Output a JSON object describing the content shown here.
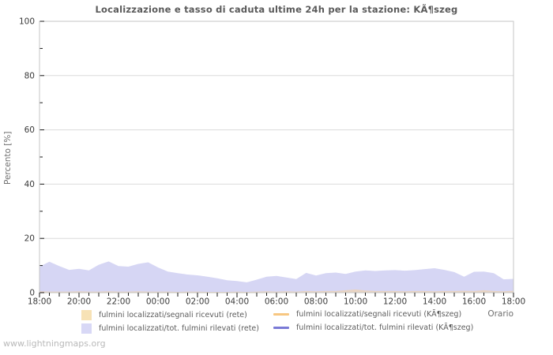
{
  "page": {
    "watermark": "www.lightningmaps.org",
    "background": "#ffffff"
  },
  "chart": {
    "title": "Localizzazione e tasso di caduta ultime 24h per la stazione: KÃ¶szeg",
    "y_axis_label": "Percento  [%]",
    "x_axis_label": "Orario"
  },
  "colors": {
    "plot_border": "#c4c4c4",
    "gridline": "#dcdcdc",
    "tick": "#1a1a1a",
    "axis_text": "#3a3a3a",
    "title_text": "#5a5a5a",
    "legend_text": "#5c5c5c",
    "watermark_text": "#b9b9b9",
    "area_rete_segnali_fill": "#e9d4c2",
    "area_rete_tot_fill": "#d6d6f4",
    "legend_swatch_segnali": "#f7e2b6",
    "legend_swatch_tot": "#d8d8f6",
    "line_koszeg_segnali": "#f7c781",
    "line_koszeg_tot": "#7a7ad6"
  },
  "chart_data": {
    "type": "area",
    "title": "Localizzazione e tasso di caduta ultime 24h per la stazione: KÃ¶szeg",
    "xlabel": "Orario",
    "ylabel": "Percento  [%]",
    "ylim": [
      0,
      100
    ],
    "y_ticks": [
      0,
      20,
      40,
      60,
      80,
      100
    ],
    "grid": true,
    "legend_position": "bottom",
    "x_tick_labels": [
      "18:00",
      "20:00",
      "22:00",
      "00:00",
      "02:00",
      "04:00",
      "06:00",
      "08:00",
      "10:00",
      "12:00",
      "14:00",
      "16:00",
      "18:00"
    ],
    "x": [
      "18:00",
      "18:30",
      "19:00",
      "19:30",
      "20:00",
      "20:30",
      "21:00",
      "21:30",
      "22:00",
      "22:30",
      "23:00",
      "23:30",
      "00:00",
      "00:30",
      "01:00",
      "01:30",
      "02:00",
      "02:30",
      "03:00",
      "03:30",
      "04:00",
      "04:30",
      "05:00",
      "05:30",
      "06:00",
      "06:30",
      "07:00",
      "07:30",
      "08:00",
      "08:30",
      "09:00",
      "09:30",
      "10:00",
      "10:30",
      "11:00",
      "11:30",
      "12:00",
      "12:30",
      "13:00",
      "13:30",
      "14:00",
      "14:30",
      "15:00",
      "15:30",
      "16:00",
      "16:30",
      "17:00",
      "17:30",
      "18:00"
    ],
    "series": [
      {
        "name": "fulmini localizzati/segnali ricevuti (rete)",
        "type": "area",
        "color": "#f7e2b6",
        "plot_fill": "#e9d4c2",
        "values": [
          0.5,
          0.4,
          0.4,
          0.4,
          0.5,
          0.4,
          0.4,
          0.5,
          0.4,
          0.4,
          0.5,
          0.4,
          0.4,
          0.4,
          0.3,
          0.4,
          0.4,
          0.3,
          0.3,
          0.3,
          0.4,
          0.3,
          0.4,
          0.5,
          0.4,
          0.5,
          0.4,
          0.6,
          0.5,
          0.6,
          0.6,
          0.9,
          1.2,
          0.8,
          0.6,
          0.6,
          0.6,
          0.5,
          0.6,
          0.6,
          0.5,
          0.6,
          0.6,
          0.7,
          0.6,
          0.9,
          0.6,
          0.5,
          0.7
        ]
      },
      {
        "name": "fulmini localizzati/tot. fulmini rilevati (rete)",
        "type": "area",
        "color": "#d8d8f6",
        "plot_fill": "#d6d6f4",
        "values": [
          9.6,
          11.4,
          9.8,
          8.4,
          8.8,
          8.2,
          10.3,
          11.5,
          9.8,
          9.6,
          10.6,
          11.2,
          9.3,
          7.8,
          7.2,
          6.7,
          6.4,
          5.9,
          5.3,
          4.6,
          4.3,
          3.8,
          4.8,
          5.9,
          6.2,
          5.6,
          5.0,
          7.3,
          6.3,
          7.2,
          7.4,
          6.9,
          7.8,
          8.2,
          8.0,
          8.2,
          8.3,
          8.1,
          8.3,
          8.7,
          9.0,
          8.4,
          7.6,
          5.9,
          7.7,
          7.8,
          7.2,
          4.9,
          5.1
        ]
      },
      {
        "name": "fulmini localizzati/segnali ricevuti (KÃ¶szeg)",
        "type": "line",
        "color": "#f7c781",
        "values": []
      },
      {
        "name": "fulmini localizzati/tot. fulmini rilevati (KÃ¶szeg)",
        "type": "line",
        "color": "#7a7ad6",
        "values": []
      }
    ]
  }
}
